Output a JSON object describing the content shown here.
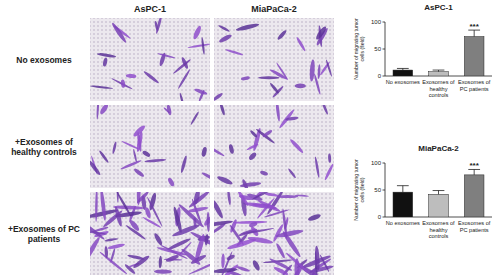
{
  "figure": {
    "columns": [
      "AsPC-1",
      "MiaPaCa-2"
    ],
    "rows": [
      "No exosomes",
      "+Exosomes of healthy controls",
      "+Exosomes of PC patients"
    ]
  },
  "chart_data": [
    {
      "type": "bar",
      "title": "AsPC-1",
      "y_label": "Number of migrating tumor cells (field)",
      "categories": [
        "No exosomes",
        "Exosomes of healthy controls",
        "Exosomes of PC patients"
      ],
      "values": [
        11,
        8,
        73
      ],
      "errors": [
        3,
        3,
        12
      ],
      "colors": [
        "#111111",
        "#bdbdbd",
        "#7f7f7f"
      ],
      "ylim": [
        0,
        100
      ],
      "yticks": [
        0,
        50,
        100
      ],
      "annotations": [
        {
          "text": "***",
          "index": 2
        }
      ]
    },
    {
      "type": "bar",
      "title": "MiaPaCa-2",
      "y_label": "Number of migrating tumor cells (field)",
      "categories": [
        "No exosomes",
        "Exosomes of healthy controls",
        "Exosomes of PC patients"
      ],
      "values": [
        46,
        42,
        78
      ],
      "errors": [
        12,
        7,
        10
      ],
      "colors": [
        "#111111",
        "#bdbdbd",
        "#7f7f7f"
      ],
      "ylim": [
        0,
        100
      ],
      "yticks": [
        0,
        50,
        100
      ],
      "annotations": [
        {
          "text": "***",
          "index": 2
        }
      ]
    }
  ]
}
